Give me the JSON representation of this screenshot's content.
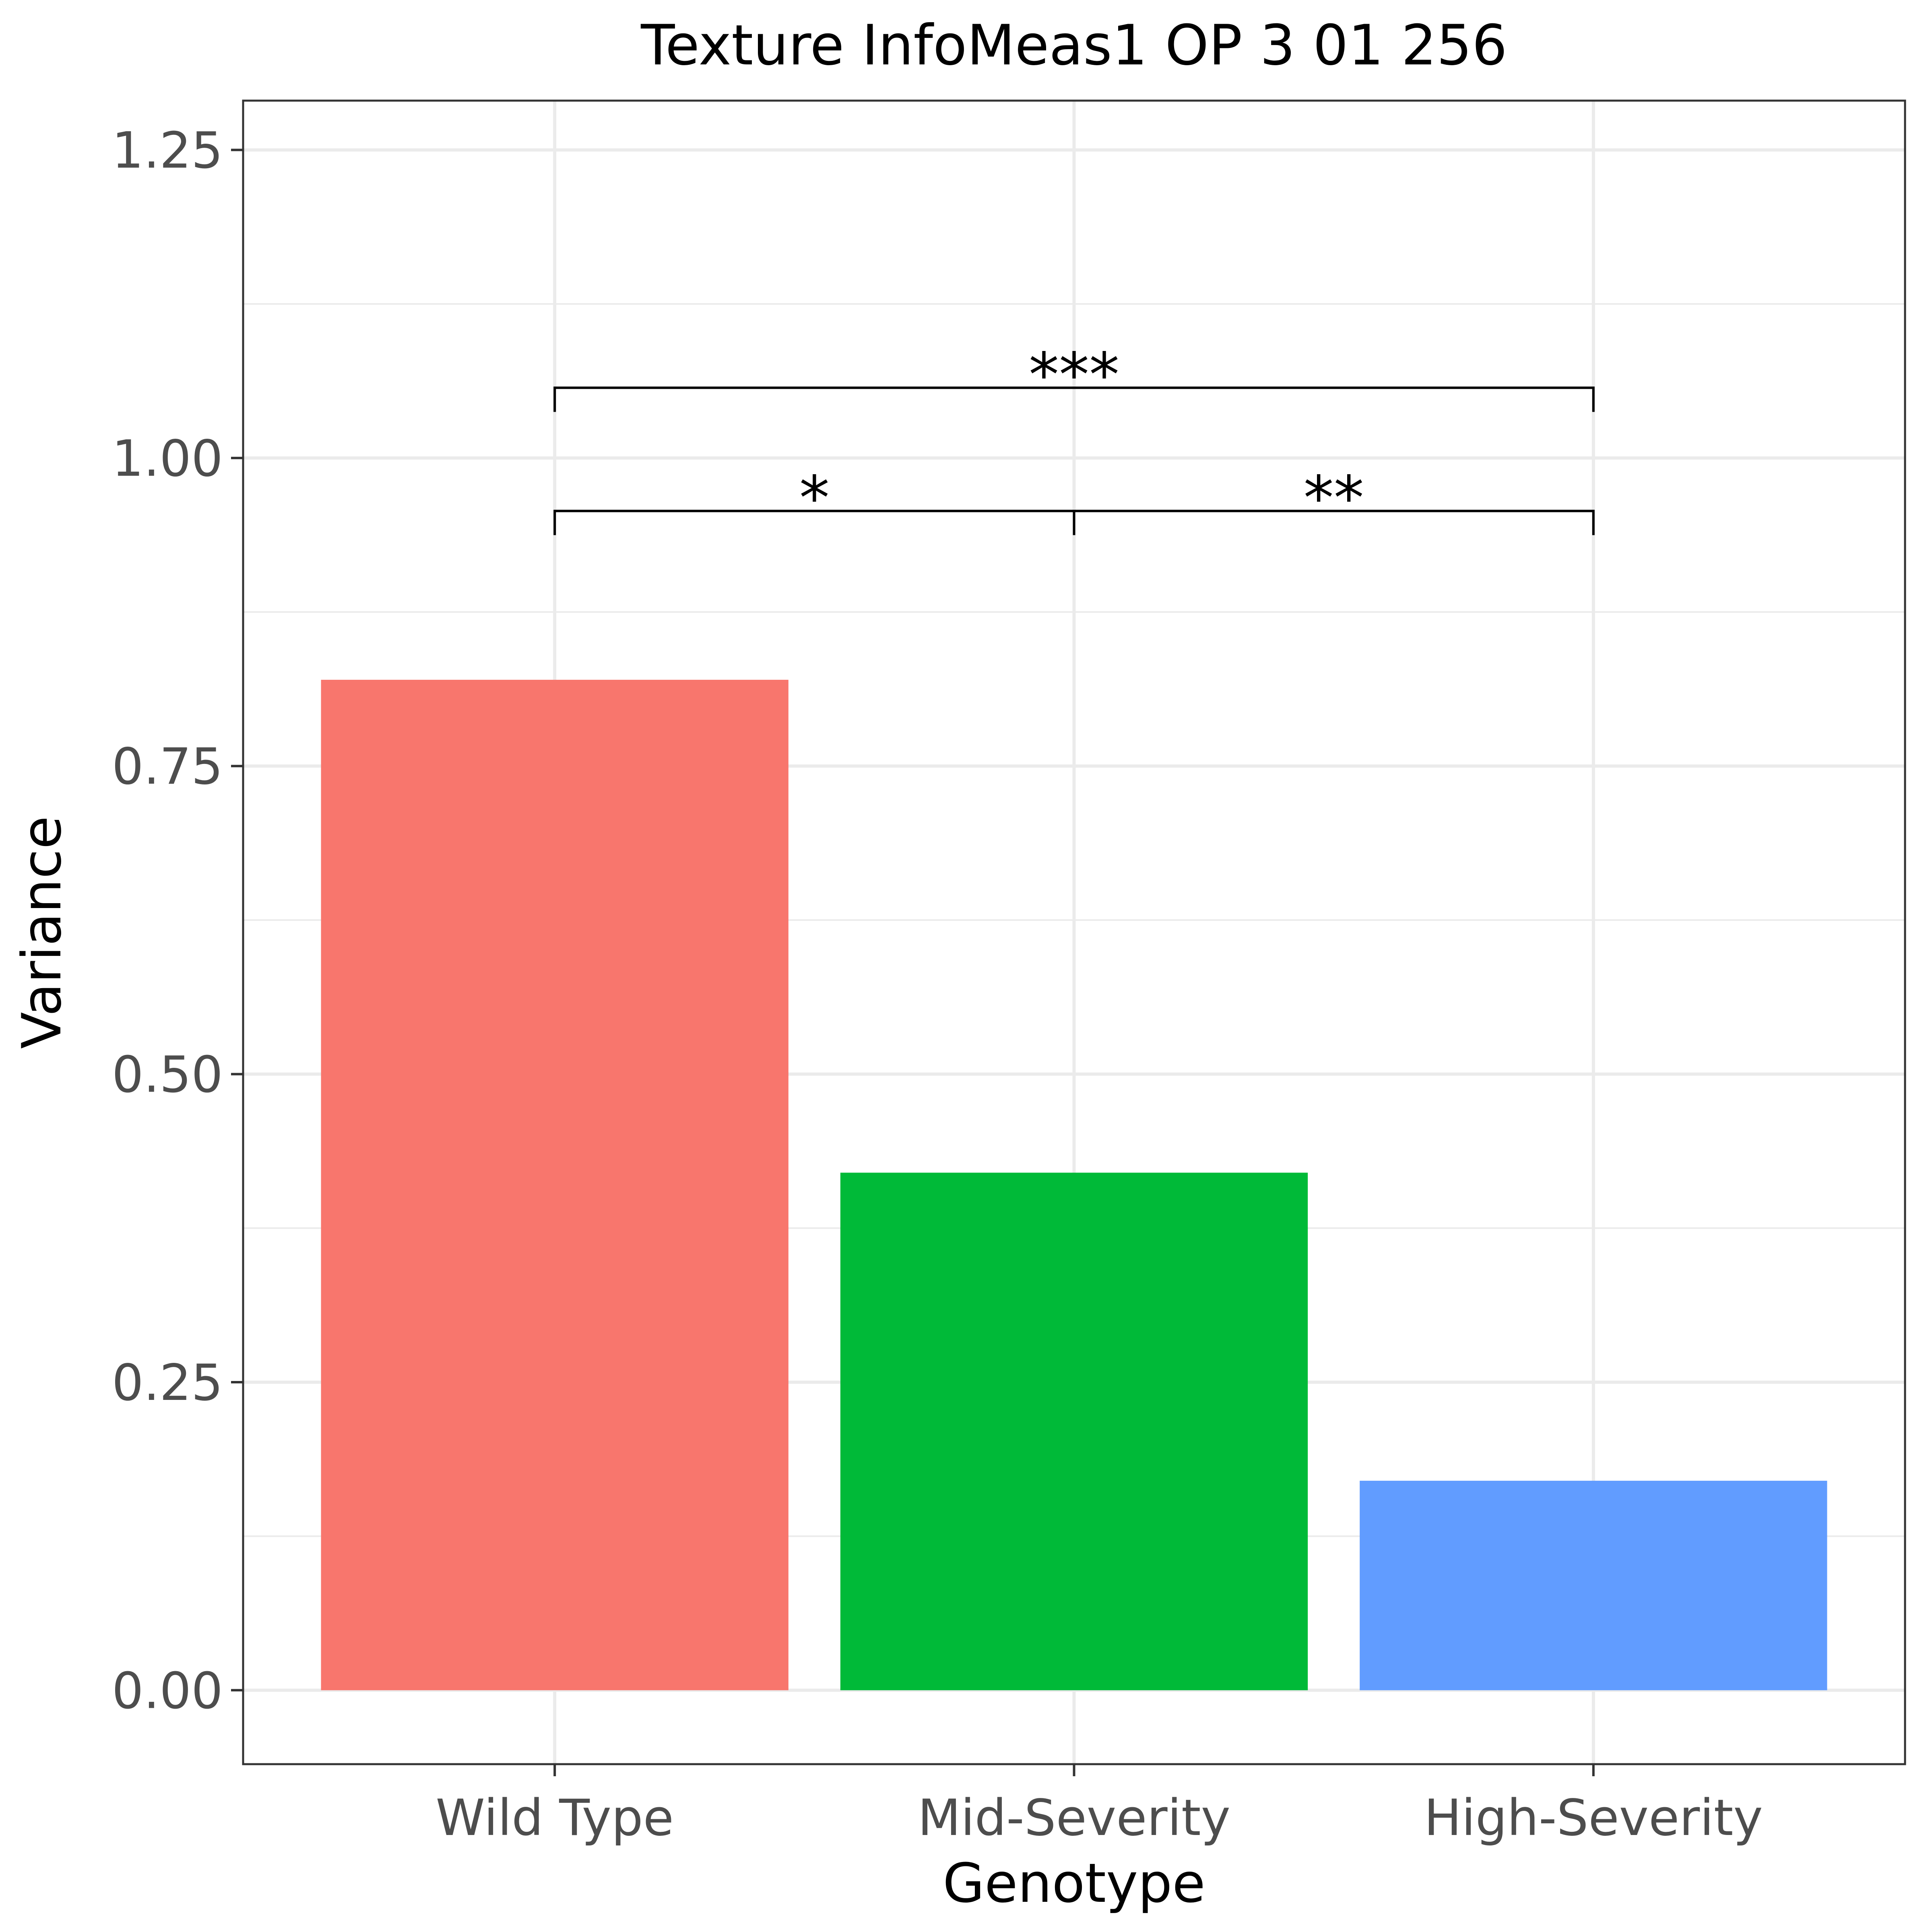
{
  "chart_data": {
    "type": "bar",
    "title": "Texture InfoMeas1 OP 3 01 256",
    "xlabel": "Genotype",
    "ylabel": "Variance",
    "categories": [
      "Wild Type",
      "Mid-Severity",
      "High-Severity"
    ],
    "values": [
      0.82,
      0.42,
      0.17
    ],
    "colors": [
      "#F8766D",
      "#00BA38",
      "#619CFF"
    ],
    "ylim": [
      -0.06,
      1.29
    ],
    "yticks": [
      "0.00",
      "0.25",
      "0.50",
      "0.75",
      "1.00",
      "1.25"
    ],
    "ytick_values": [
      0,
      0.25,
      0.5,
      0.75,
      1.0,
      1.25
    ],
    "grid": true,
    "significance": [
      {
        "from": "Wild Type",
        "to": "Mid-Severity",
        "label": "*",
        "y": 0.957
      },
      {
        "from": "Mid-Severity",
        "to": "High-Severity",
        "label": "**",
        "y": 0.957
      },
      {
        "from": "Wild Type",
        "to": "High-Severity",
        "label": "***",
        "y": 1.057
      }
    ]
  }
}
